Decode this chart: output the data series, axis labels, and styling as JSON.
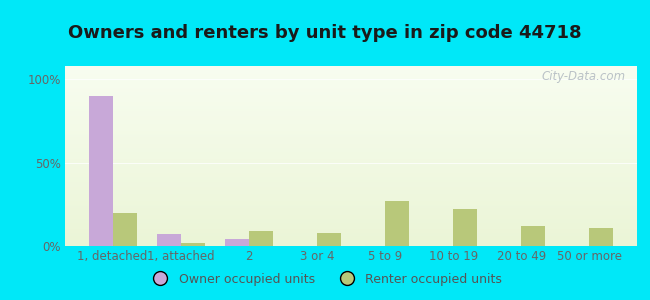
{
  "title": "Owners and renters by unit type in zip code 44718",
  "categories": [
    "1, detached",
    "1, attached",
    "2",
    "3 or 4",
    "5 to 9",
    "10 to 19",
    "20 to 49",
    "50 or more"
  ],
  "owner_values": [
    90,
    7,
    4,
    0,
    0,
    0,
    0,
    0
  ],
  "renter_values": [
    20,
    2,
    9,
    8,
    27,
    22,
    12,
    11
  ],
  "owner_color": "#c8a8d8",
  "renter_color": "#b8c87a",
  "background_outer": "#00e8f8",
  "yticks": [
    0,
    50,
    100
  ],
  "ytick_labels": [
    "0%",
    "50%",
    "100%"
  ],
  "ylim": [
    0,
    108
  ],
  "bar_width": 0.35,
  "legend_owner": "Owner occupied units",
  "legend_renter": "Renter occupied units",
  "title_fontsize": 13,
  "tick_fontsize": 8.5,
  "legend_fontsize": 9,
  "watermark": "City-Data.com"
}
